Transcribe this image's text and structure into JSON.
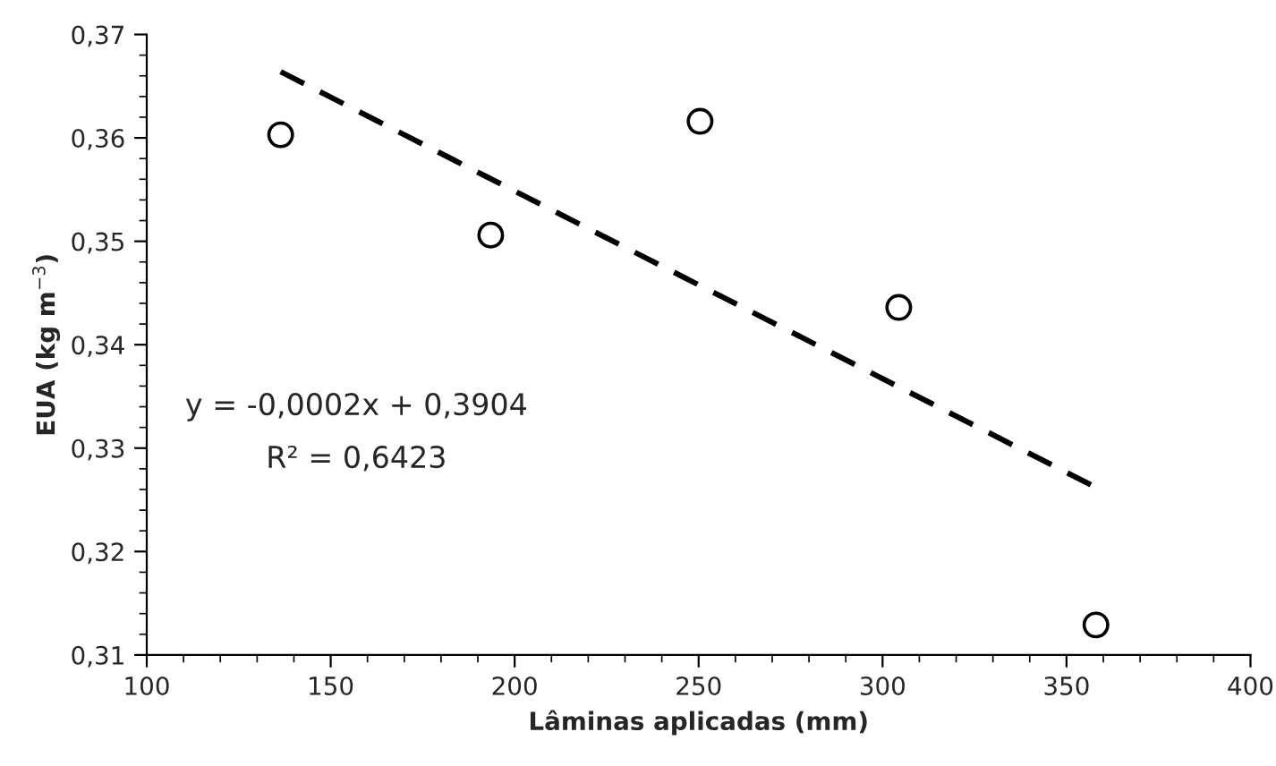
{
  "chart_data": {
    "type": "scatter",
    "xlabel": "Lâminas aplicadas (mm)",
    "ylabel": "EUA (kg m$^{−3}$)",
    "marker": "circle",
    "grid": false,
    "legend": false,
    "xlim": [
      100,
      400
    ],
    "xticks": [
      100,
      150,
      200,
      250,
      300,
      350,
      400
    ],
    "ylim": [
      0.31,
      0.37
    ],
    "yticks": [
      {
        "value": 0.31,
        "label": "0,31"
      },
      {
        "value": 0.32,
        "label": "0,32"
      },
      {
        "value": 0.33,
        "label": "0,33"
      },
      {
        "value": 0.34,
        "label": "0,34"
      },
      {
        "value": 0.35,
        "label": "0,35"
      },
      {
        "value": 0.36,
        "label": "0,36"
      },
      {
        "value": 0.37,
        "label": "0,37"
      }
    ],
    "series": [
      {
        "color": "#000000",
        "x": [
          136.4,
          193.5,
          250.4,
          304.4,
          358
        ],
        "values": [
          0.3603,
          0.3506,
          0.3616,
          0.3436,
          0.3129
        ]
      },
      {
        "type": "line",
        "color": "#000000",
        "line_style": "dashed",
        "marker": "none",
        "x": [
          136.4,
          358
        ],
        "values": [
          0.3664,
          0.3262
        ]
      }
    ],
    "annotations": [
      "y = -0,0002x + 0,3904",
      "R² = 0,6423"
    ]
  }
}
